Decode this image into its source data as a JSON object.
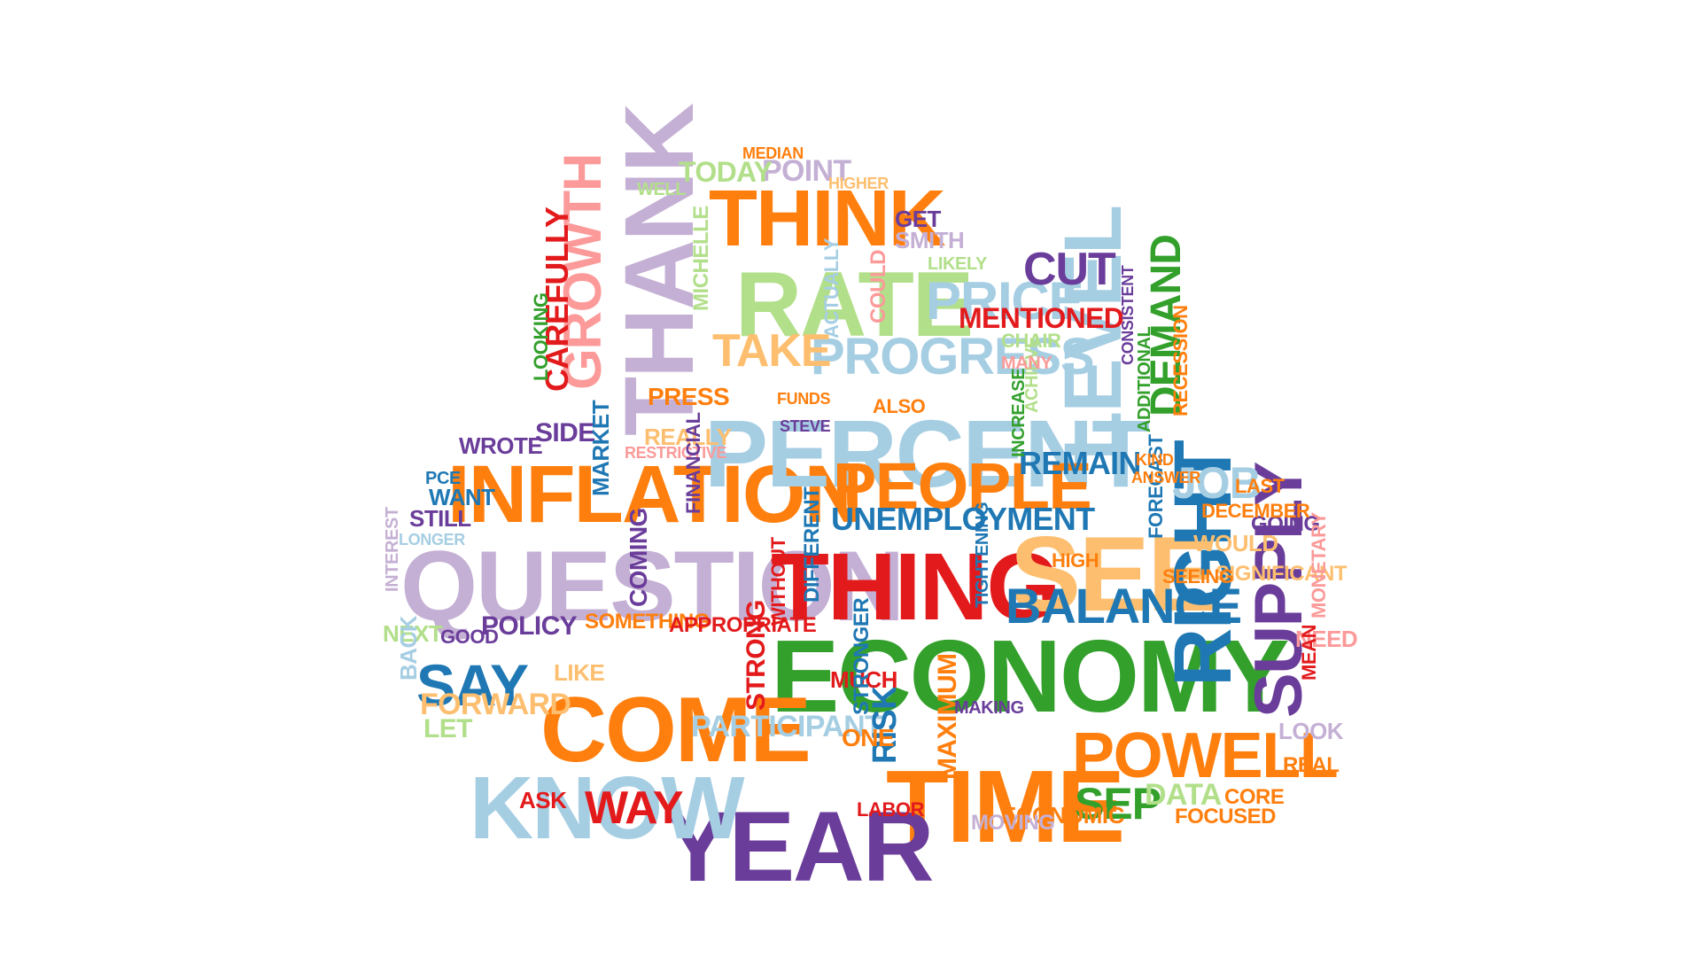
{
  "words": [
    {
      "t": "INFLATION",
      "c": "orange"
    },
    {
      "t": "ECONOMY",
      "c": "green"
    },
    {
      "t": "QUESTION",
      "c": "lpurple"
    },
    {
      "t": "PERCENT",
      "c": "lblue"
    },
    {
      "t": "THINK",
      "c": "orange"
    },
    {
      "t": "RATE",
      "c": "lgreen"
    },
    {
      "t": "THANK",
      "c": "lpurple"
    },
    {
      "t": "COME",
      "c": "orange"
    },
    {
      "t": "THING",
      "c": "red"
    },
    {
      "t": "TIME",
      "c": "orange"
    },
    {
      "t": "YEAR",
      "c": "purple"
    },
    {
      "t": "KNOW",
      "c": "lblue"
    },
    {
      "t": "SEE",
      "c": "peach"
    },
    {
      "t": "RIGHT",
      "c": "blue"
    },
    {
      "t": "LEVEL",
      "c": "lblue"
    },
    {
      "t": "PEOPLE",
      "c": "orange"
    },
    {
      "t": "GROWTH",
      "c": "pink"
    },
    {
      "t": "SUPPLY",
      "c": "purple"
    },
    {
      "t": "POWELL",
      "c": "orange"
    },
    {
      "t": "PROGRESS",
      "c": "lblue"
    },
    {
      "t": "PRICE",
      "c": "lblue"
    },
    {
      "t": "BALANCE",
      "c": "blue"
    },
    {
      "t": "SAY",
      "c": "blue"
    },
    {
      "t": "DEMAND",
      "c": "green"
    },
    {
      "t": "UNEMPLOYMENT",
      "c": "blue"
    },
    {
      "t": "CUT",
      "c": "purple"
    },
    {
      "t": "REMAIN",
      "c": "blue"
    },
    {
      "t": "MENTIONED",
      "c": "red"
    },
    {
      "t": "TAKE",
      "c": "peach"
    },
    {
      "t": "CAREFULLY",
      "c": "red"
    },
    {
      "t": "WAY",
      "c": "red"
    },
    {
      "t": "SEP",
      "c": "green"
    },
    {
      "t": "JOB",
      "c": "lblue"
    },
    {
      "t": "FORWARD",
      "c": "peach"
    },
    {
      "t": "PARTICIPANT",
      "c": "lblue"
    },
    {
      "t": "RISK",
      "c": "blue"
    },
    {
      "t": "MAXIMUM",
      "c": "orange"
    },
    {
      "t": "ECONOMIC",
      "c": "orange"
    },
    {
      "t": "DATA",
      "c": "lgreen"
    },
    {
      "t": "COMING",
      "c": "purple"
    },
    {
      "t": "SOMETHING",
      "c": "orange"
    },
    {
      "t": "APPROPRIATE",
      "c": "red"
    },
    {
      "t": "STRONG",
      "c": "red"
    },
    {
      "t": "POLICY",
      "c": "purple"
    },
    {
      "t": "PRESS",
      "c": "orange"
    },
    {
      "t": "POINT",
      "c": "lpurple"
    },
    {
      "t": "TODAY",
      "c": "lgreen"
    },
    {
      "t": "SMITH",
      "c": "lpurple"
    },
    {
      "t": "GET",
      "c": "purple"
    },
    {
      "t": "WOULD",
      "c": "peach"
    },
    {
      "t": "GOING",
      "c": "purple"
    },
    {
      "t": "DECEMBER",
      "c": "orange"
    },
    {
      "t": "LAST",
      "c": "orange"
    },
    {
      "t": "SIGNIFICANT",
      "c": "peach"
    },
    {
      "t": "NEED",
      "c": "pink"
    },
    {
      "t": "MEAN",
      "c": "red"
    },
    {
      "t": "REAL",
      "c": "orange"
    },
    {
      "t": "LOOK",
      "c": "lpurple"
    },
    {
      "t": "MONETARY",
      "c": "pink"
    },
    {
      "t": "RECESSION",
      "c": "orange"
    },
    {
      "t": "ADDITIONAL",
      "c": "green"
    },
    {
      "t": "CONSISTENT",
      "c": "purple"
    },
    {
      "t": "INCREASE",
      "c": "green"
    },
    {
      "t": "ACHIEVE",
      "c": "lgreen"
    },
    {
      "t": "CHAIR",
      "c": "lgreen"
    },
    {
      "t": "MANY",
      "c": "pink"
    },
    {
      "t": "ALSO",
      "c": "orange"
    },
    {
      "t": "REALLY",
      "c": "peach"
    },
    {
      "t": "RESTRICTIVE",
      "c": "pink"
    },
    {
      "t": "SIDE",
      "c": "purple"
    },
    {
      "t": "WROTE",
      "c": "purple"
    },
    {
      "t": "STILL",
      "c": "purple"
    },
    {
      "t": "WANT",
      "c": "blue"
    },
    {
      "t": "PCE",
      "c": "blue"
    },
    {
      "t": "LONGER",
      "c": "lblue"
    },
    {
      "t": "INTEREST",
      "c": "lpurple"
    },
    {
      "t": "NEXT",
      "c": "lgreen"
    },
    {
      "t": "BACK",
      "c": "lblue"
    },
    {
      "t": "GOOD",
      "c": "purple"
    },
    {
      "t": "LET",
      "c": "lgreen"
    },
    {
      "t": "ASK",
      "c": "red"
    },
    {
      "t": "LIKE",
      "c": "peach"
    },
    {
      "t": "MARKET",
      "c": "blue"
    },
    {
      "t": "LOOKING",
      "c": "green"
    },
    {
      "t": "FINANCIAL",
      "c": "purple"
    },
    {
      "t": "WITHOUT",
      "c": "red"
    },
    {
      "t": "DIFFERENT",
      "c": "blue"
    },
    {
      "t": "MUCH",
      "c": "red"
    },
    {
      "t": "ONE",
      "c": "orange"
    },
    {
      "t": "TIGHTENING",
      "c": "blue"
    },
    {
      "t": "MOVING",
      "c": "lpurple"
    },
    {
      "t": "LABOR",
      "c": "red"
    },
    {
      "t": "FOCUSED",
      "c": "orange"
    },
    {
      "t": "CORE",
      "c": "orange"
    },
    {
      "t": "HIGH",
      "c": "orange"
    },
    {
      "t": "FORECAST",
      "c": "blue"
    },
    {
      "t": "SEEING",
      "c": "orange"
    },
    {
      "t": "KIND",
      "c": "orange"
    },
    {
      "t": "ANSWER",
      "c": "orange"
    },
    {
      "t": "COULD",
      "c": "pink"
    },
    {
      "t": "LIKELY",
      "c": "lgreen"
    },
    {
      "t": "MICHELLE",
      "c": "lgreen"
    },
    {
      "t": "ACTUALLY",
      "c": "lblue"
    },
    {
      "t": "STRONGER",
      "c": "blue"
    },
    {
      "t": "MAKING",
      "c": "purple"
    },
    {
      "t": "MEDIAN",
      "c": "orange"
    },
    {
      "t": "WELL",
      "c": "lgreen"
    },
    {
      "t": "STEVE",
      "c": "purple"
    },
    {
      "t": "FUNDS",
      "c": "orange"
    },
    {
      "t": "HIGHER",
      "c": "peach"
    }
  ]
}
